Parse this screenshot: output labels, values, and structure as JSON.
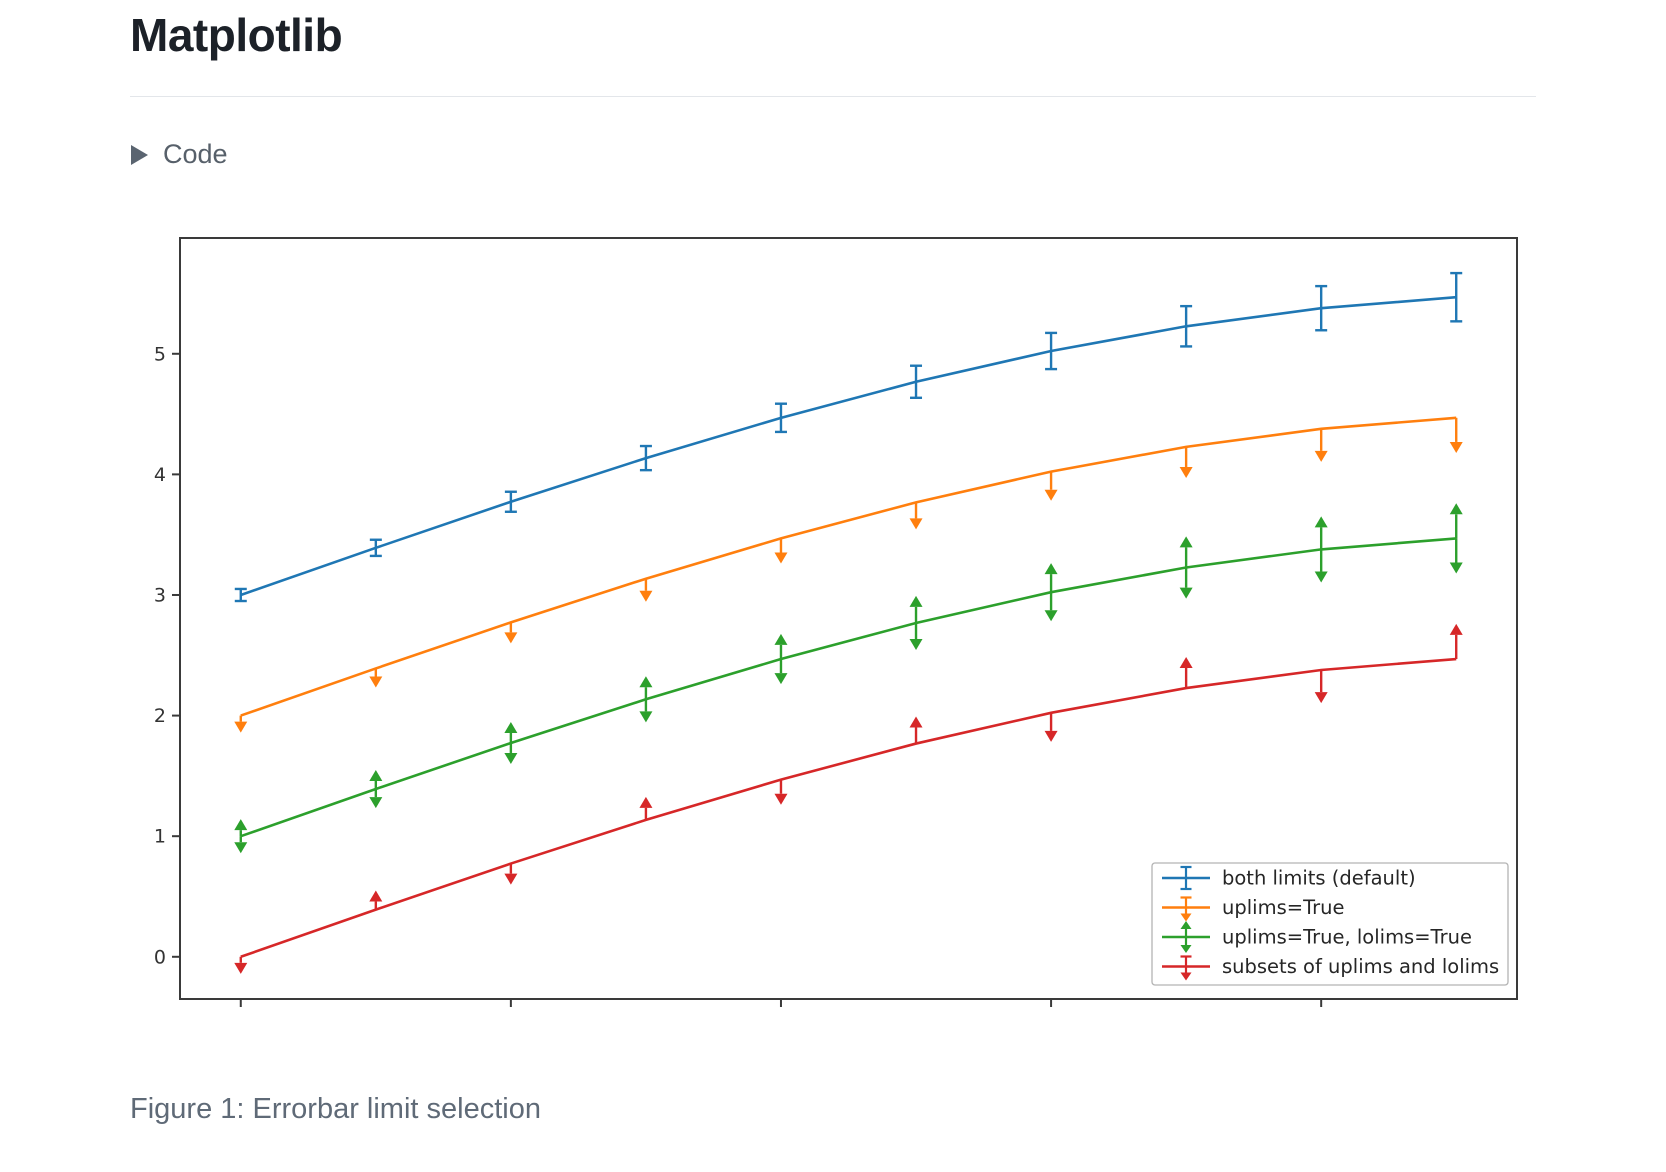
{
  "page": {
    "title": "Matplotlib",
    "code_toggle_label": "Code",
    "figure_caption": "Figure 1: Errorbar limit selection"
  },
  "colors": {
    "axis": "#3a3a3a",
    "tick_label": "#333333",
    "legend_text": "#262626",
    "legend_border": "#b4b4b4",
    "divider": "#e3e6ea",
    "heading_text": "#1c2128",
    "muted_text": "#57606a",
    "caption_text": "#5f6a77",
    "series_blue": "#1f77b4",
    "series_orange": "#ff7f0e",
    "series_green": "#2ca02c",
    "series_red": "#d62728"
  },
  "chart_data": {
    "type": "line",
    "title": "",
    "xlabel": "",
    "ylabel": "",
    "xlim": [
      -0.45,
      9.45
    ],
    "ylim": [
      -0.35,
      5.96
    ],
    "xticks": [
      0,
      2,
      4,
      6,
      8
    ],
    "yticks": [
      0,
      1,
      2,
      3,
      4,
      5
    ],
    "grid": false,
    "legend_position": "lower right",
    "x": [
      0,
      1,
      2,
      3,
      4,
      5,
      6,
      7,
      8,
      9
    ],
    "yerr": [
      0.05,
      0.067,
      0.083,
      0.1,
      0.117,
      0.133,
      0.15,
      0.167,
      0.183,
      0.2
    ],
    "series": [
      {
        "name": "both limits (default)",
        "color": "#1f77b4",
        "limit_style": "caps",
        "values": [
          3.0,
          3.391,
          3.773,
          4.135,
          4.469,
          4.768,
          5.023,
          5.228,
          5.378,
          5.469
        ]
      },
      {
        "name": "uplims=True",
        "color": "#ff7f0e",
        "limit_style": "down-arrows",
        "values": [
          2.0,
          2.391,
          2.773,
          3.135,
          3.469,
          3.768,
          4.023,
          4.228,
          4.378,
          4.469
        ]
      },
      {
        "name": "uplims=True, lolims=True",
        "color": "#2ca02c",
        "limit_style": "both-arrows",
        "values": [
          1.0,
          1.391,
          1.773,
          2.135,
          2.469,
          2.768,
          3.023,
          3.228,
          3.378,
          3.469
        ]
      },
      {
        "name": "subsets of uplims and lolims",
        "color": "#d62728",
        "limit_style": "alternating-arrows",
        "values": [
          0.0,
          0.391,
          0.773,
          1.135,
          1.469,
          1.768,
          2.023,
          2.228,
          2.378,
          2.469
        ]
      }
    ]
  }
}
